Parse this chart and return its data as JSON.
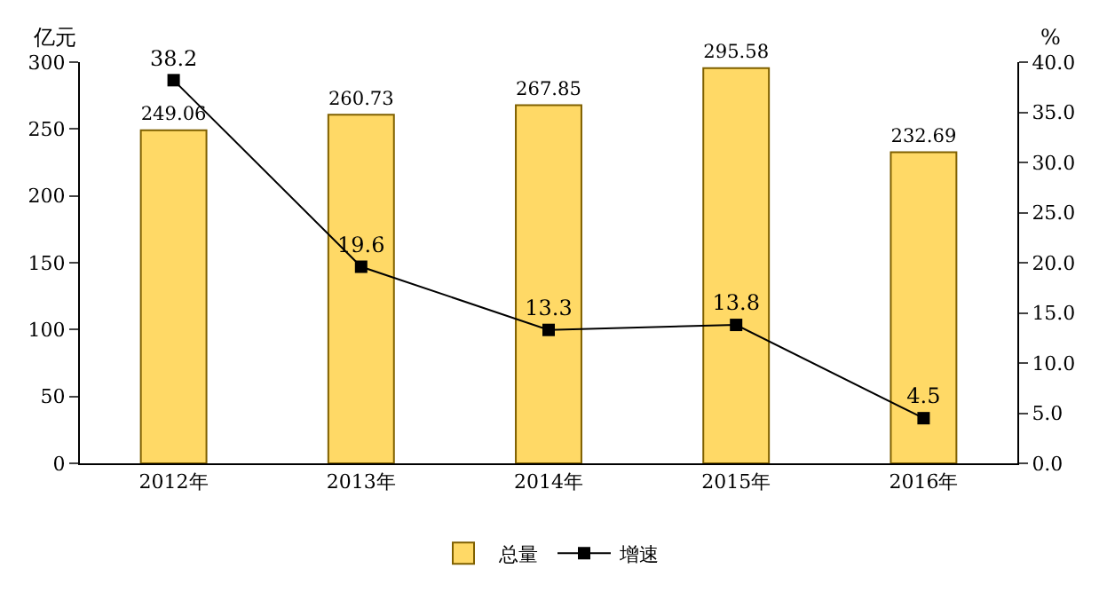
{
  "chart_data": {
    "type": "bar",
    "ylabel": "亿元",
    "y2label": "%",
    "categories": [
      "2012年",
      "2013年",
      "2014年",
      "2015年",
      "2016年"
    ],
    "series": [
      {
        "name": "总量",
        "color": "#ffd966",
        "values": [
          249.06,
          260.73,
          267.85,
          295.58,
          232.69
        ]
      },
      {
        "name": "增速",
        "type": "line",
        "axis": "y2",
        "color": "#000000",
        "marker": "square",
        "line_style": "solid",
        "values": [
          38.2,
          19.6,
          13.3,
          13.8,
          4.5
        ]
      }
    ],
    "ylim": [
      0,
      300
    ],
    "yticks": [
      0,
      50,
      100,
      150,
      200,
      250,
      300
    ],
    "y2lim": [
      0,
      40
    ],
    "y2ticks": [
      {
        "value": 0,
        "label": "0.0"
      },
      {
        "value": 5,
        "label": "5.0"
      },
      {
        "value": 10,
        "label": "10.0"
      },
      {
        "value": 15,
        "label": "15.0"
      },
      {
        "value": 20,
        "label": "20.0"
      },
      {
        "value": 25,
        "label": "25.0"
      },
      {
        "value": 30,
        "label": "30.0"
      },
      {
        "value": 35,
        "label": "35.0"
      },
      {
        "value": 40,
        "label": "40.0"
      }
    ],
    "data_labels": true,
    "legend": "bottom",
    "grid": false
  }
}
